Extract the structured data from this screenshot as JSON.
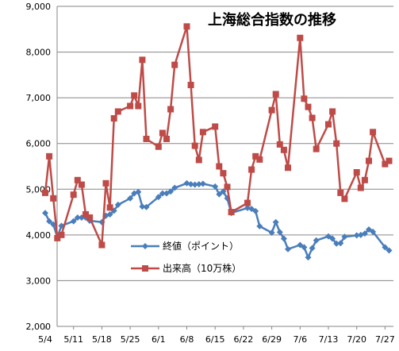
{
  "chart_data": {
    "type": "line",
    "title": "上海総合指数の推移",
    "xlabel": "",
    "ylabel": "",
    "ylim": [
      2000,
      9000
    ],
    "yticks": [
      2000,
      3000,
      4000,
      5000,
      6000,
      7000,
      8000,
      9000
    ],
    "ytick_labels": [
      "2,000",
      "3,000",
      "4,000",
      "5,000",
      "6,000",
      "7,000",
      "8,000",
      "9,000"
    ],
    "xticks": [
      "5/4",
      "5/11",
      "5/18",
      "5/25",
      "6/1",
      "6/8",
      "6/15",
      "6/22",
      "6/29",
      "7/6",
      "7/13",
      "7/20",
      "7/27"
    ],
    "x_start": "5/4",
    "grid": true,
    "legend_position": "center",
    "series": [
      {
        "name": "終値（ポイント）",
        "color": "#4A7EBB",
        "marker": "diamond",
        "x": [
          "5/4",
          "5/5",
          "5/6",
          "5/7",
          "5/8",
          "5/11",
          "5/12",
          "5/13",
          "5/14",
          "5/15",
          "5/18",
          "5/19",
          "5/20",
          "5/21",
          "5/22",
          "5/25",
          "5/26",
          "5/27",
          "5/28",
          "5/29",
          "6/1",
          "6/2",
          "6/3",
          "6/4",
          "6/5",
          "6/8",
          "6/9",
          "6/10",
          "6/11",
          "6/12",
          "6/15",
          "6/16",
          "6/17",
          "6/18",
          "6/19",
          "6/23",
          "6/24",
          "6/25",
          "6/26",
          "6/29",
          "6/30",
          "7/1",
          "7/2",
          "7/3",
          "7/6",
          "7/7",
          "7/8",
          "7/9",
          "7/10",
          "7/13",
          "7/14",
          "7/15",
          "7/16",
          "7/17",
          "7/20",
          "7/21",
          "7/22",
          "7/23",
          "7/24",
          "7/27",
          "7/28"
        ],
        "y": [
          4480,
          4300,
          4230,
          3950,
          4200,
          4300,
          4380,
          4380,
          4380,
          4310,
          4280,
          4420,
          4450,
          4530,
          4660,
          4800,
          4910,
          4940,
          4620,
          4610,
          4830,
          4910,
          4910,
          4950,
          5030,
          5130,
          5110,
          5100,
          5110,
          5120,
          5060,
          4890,
          4950,
          4800,
          4480,
          4590,
          4570,
          4520,
          4190,
          4050,
          4280,
          4060,
          3920,
          3690,
          3780,
          3730,
          3510,
          3710,
          3880,
          3970,
          3920,
          3810,
          3820,
          3960,
          3990,
          4000,
          4030,
          4120,
          4070,
          3730,
          3660
        ]
      },
      {
        "name": "出来高（10万株）",
        "color": "#BE4B48",
        "marker": "square",
        "x": [
          "5/4",
          "5/5",
          "5/6",
          "5/7",
          "5/8",
          "5/11",
          "5/12",
          "5/13",
          "5/14",
          "5/15",
          "5/18",
          "5/19",
          "5/20",
          "5/21",
          "5/22",
          "5/25",
          "5/26",
          "5/27",
          "5/28",
          "5/29",
          "6/1",
          "6/2",
          "6/3",
          "6/4",
          "6/5",
          "6/8",
          "6/9",
          "6/10",
          "6/11",
          "6/12",
          "6/15",
          "6/16",
          "6/17",
          "6/18",
          "6/19",
          "6/23",
          "6/24",
          "6/25",
          "6/26",
          "6/29",
          "6/30",
          "7/1",
          "7/2",
          "7/3",
          "7/6",
          "7/7",
          "7/8",
          "7/9",
          "7/10",
          "7/13",
          "7/14",
          "7/15",
          "7/16",
          "7/17",
          "7/20",
          "7/21",
          "7/22",
          "7/23",
          "7/24",
          "7/27",
          "7/28"
        ],
        "y": [
          4920,
          5720,
          4800,
          3930,
          4000,
          4880,
          5200,
          5100,
          4450,
          4380,
          3780,
          5130,
          4600,
          6550,
          6700,
          6820,
          7050,
          6820,
          7830,
          6100,
          5930,
          6230,
          6100,
          6750,
          7720,
          8560,
          7280,
          5950,
          5640,
          6250,
          6370,
          5500,
          5350,
          5050,
          4500,
          4700,
          5430,
          5720,
          5650,
          6730,
          7080,
          5980,
          5860,
          5470,
          8310,
          6980,
          6800,
          6560,
          5880,
          6420,
          6700,
          6000,
          4920,
          4790,
          5370,
          5030,
          5200,
          5620,
          6250,
          5550,
          5620
        ]
      }
    ]
  }
}
